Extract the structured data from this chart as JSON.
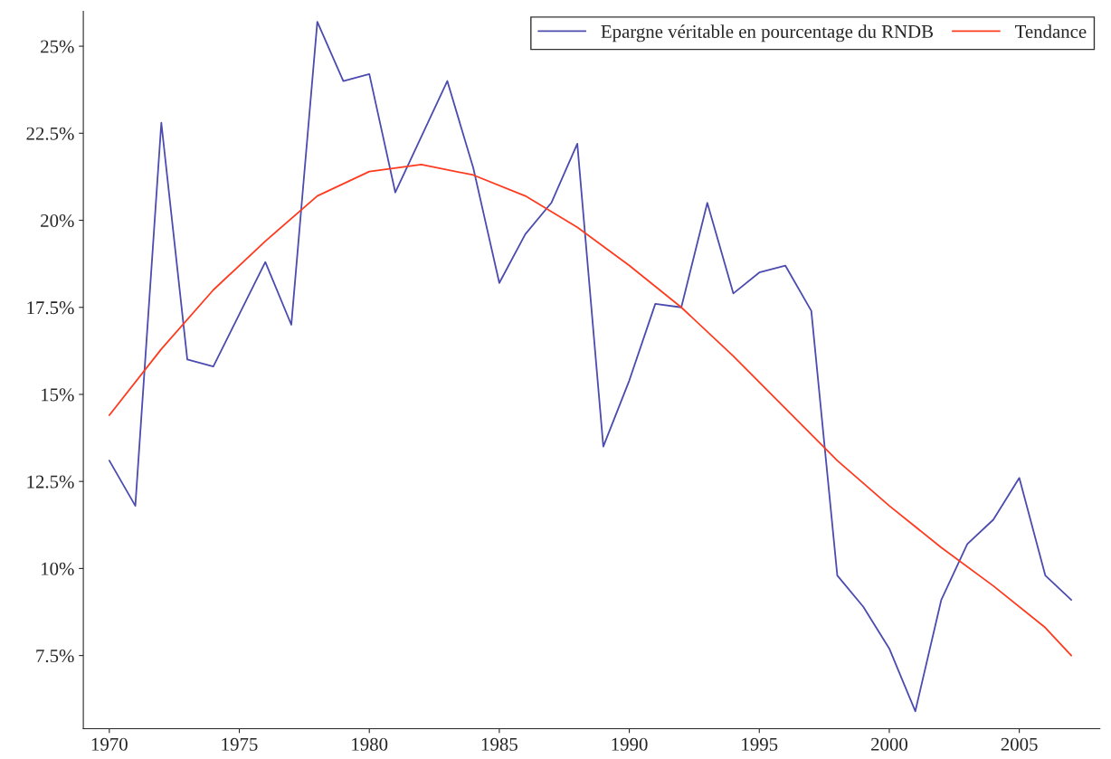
{
  "chart_data": {
    "type": "line",
    "xlim": [
      1969,
      2008.1
    ],
    "ylim": [
      5.4,
      26
    ],
    "xticks": [
      1970,
      1975,
      1980,
      1985,
      1990,
      1995,
      2000,
      2005
    ],
    "yticks": [
      {
        "value": 7.5,
        "label": "7.5%"
      },
      {
        "value": 10,
        "label": "10%"
      },
      {
        "value": 12.5,
        "label": "12.5%"
      },
      {
        "value": 15,
        "label": "15%"
      },
      {
        "value": 17.5,
        "label": "17.5%"
      },
      {
        "value": 20,
        "label": "20%"
      },
      {
        "value": 22.5,
        "label": "22.5%"
      },
      {
        "value": 25,
        "label": "25%"
      }
    ],
    "grid": false,
    "legend": "top right",
    "marker": "none",
    "line_style": "solid",
    "series": [
      {
        "name": "Epargne véritable en pourcentage du RNDB",
        "color": "#4b4bb0",
        "x": [
          1970,
          1971,
          1972,
          1973,
          1974,
          1975,
          1976,
          1977,
          1978,
          1979,
          1980,
          1981,
          1982,
          1983,
          1984,
          1985,
          1986,
          1987,
          1988,
          1989,
          1990,
          1991,
          1992,
          1993,
          1994,
          1995,
          1996,
          1997,
          1998,
          1999,
          2000,
          2001,
          2002,
          2003,
          2004,
          2005,
          2006,
          2007
        ],
        "values": [
          13.1,
          11.8,
          22.8,
          16.0,
          15.8,
          17.3,
          18.8,
          17.0,
          25.7,
          24.0,
          24.2,
          20.8,
          22.4,
          24.0,
          21.5,
          18.2,
          19.6,
          20.5,
          22.2,
          13.5,
          15.4,
          17.6,
          17.5,
          20.5,
          17.9,
          18.5,
          18.7,
          17.4,
          9.8,
          8.9,
          7.7,
          5.9,
          9.1,
          10.7,
          11.4,
          12.6,
          9.8,
          9.1
        ]
      },
      {
        "name": "Tendance",
        "color": "#ff3b1f",
        "x": [
          1970,
          1972,
          1974,
          1976,
          1978,
          1980,
          1982,
          1984,
          1986,
          1988,
          1990,
          1992,
          1994,
          1996,
          1998,
          2000,
          2002,
          2004,
          2006,
          2007
        ],
        "values": [
          14.4,
          16.3,
          18.0,
          19.4,
          20.7,
          21.4,
          21.6,
          21.3,
          20.7,
          19.8,
          18.7,
          17.5,
          16.1,
          14.6,
          13.1,
          11.8,
          10.6,
          9.5,
          8.3,
          7.5
        ]
      }
    ]
  }
}
